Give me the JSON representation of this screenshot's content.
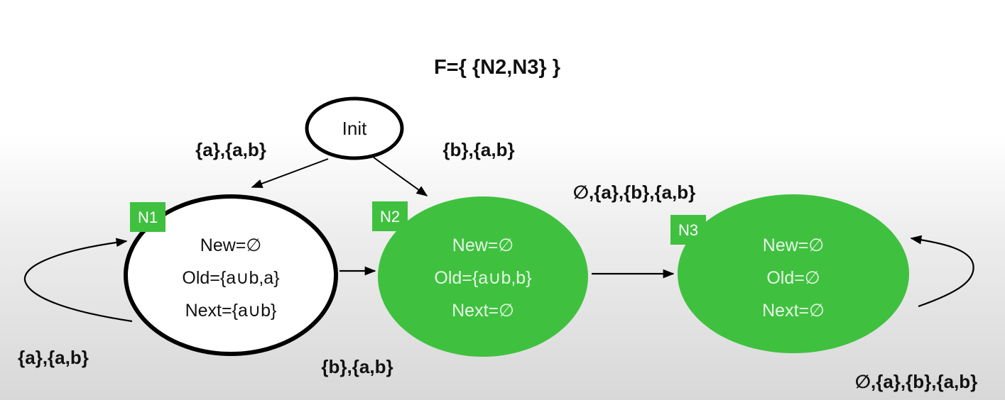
{
  "accept_set": "F={ {N2,N3} }",
  "init": {
    "label": "Init"
  },
  "nodes": {
    "n1": {
      "tag": "N1",
      "new": "New=∅",
      "old": "Old={a∪b,a}",
      "next": "Next={a∪b}",
      "accepting": false
    },
    "n2": {
      "tag": "N2",
      "new": "New=∅",
      "old": "Old={a∪b,b}",
      "next": "Next=∅",
      "accepting": true
    },
    "n3": {
      "tag": "N3",
      "new": "New=∅",
      "old": "Old=∅",
      "next": "Next=∅",
      "accepting": true
    }
  },
  "edges": {
    "init_n1": "{a},{a,b}",
    "init_n2": "{b},{a,b}",
    "n1_self": "{a},{a,b}",
    "n1_n2": "{b},{a,b}",
    "n2_n3": "∅,{a},{b},{a,b}",
    "n3_self": "∅,{a},{b},{a,b}"
  },
  "colors": {
    "accepting_fill": "#3fc13f",
    "tag_fill": "#3fc13f",
    "stroke": "#000000",
    "accepting_text": "#e6f5e6"
  }
}
